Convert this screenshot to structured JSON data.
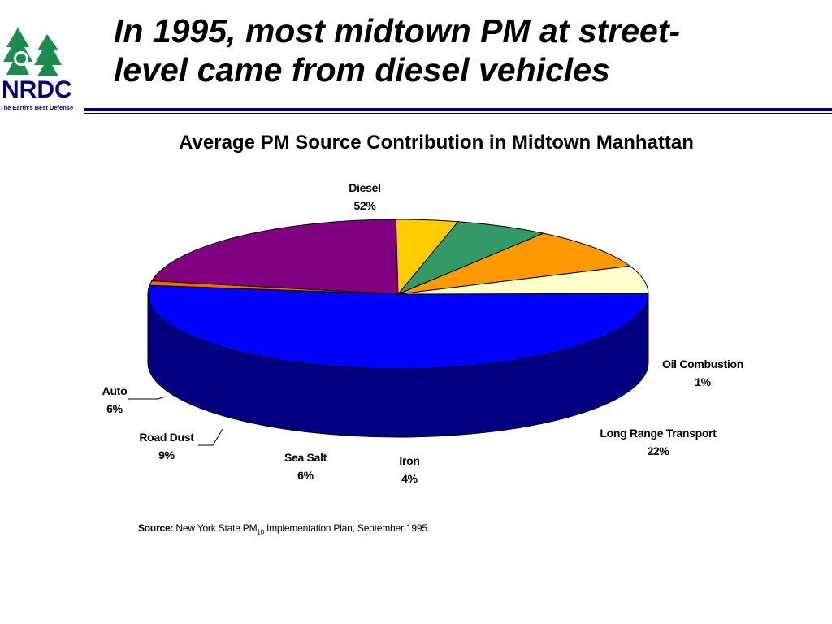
{
  "logo": {
    "text": "NRDC",
    "tagline": "The Earth's Best Defense"
  },
  "slide_title": {
    "line1": "In 1995, most midtown PM at street-",
    "line2": "level came from diesel vehicles"
  },
  "source": {
    "label": "Source:",
    "text_before": "New York State PM",
    "subscript": "10",
    "text_after": " Implementation Plan, September 1995."
  },
  "colors": {
    "brand_navy": "#000080",
    "logo_green": "#1a8c4e"
  },
  "chart_data": {
    "type": "pie",
    "style": "3d-exploded-tilted",
    "title": "Average PM Source Contribution in Midtown Manhattan",
    "slices": [
      {
        "label": "Diesel",
        "value": 52,
        "value_label": "52%",
        "color": "#0000ff",
        "side_color": "#000080"
      },
      {
        "label": "Oil Combustion",
        "value": 1,
        "value_label": "1%",
        "color": "#ff6600",
        "side_color": "#804000"
      },
      {
        "label": "Long Range Transport",
        "value": 22,
        "value_label": "22%",
        "color": "#800080",
        "side_color": "#400040"
      },
      {
        "label": "Iron",
        "value": 4,
        "value_label": "4%",
        "color": "#ffcc00",
        "side_color": "#806600"
      },
      {
        "label": "Sea Salt",
        "value": 6,
        "value_label": "6%",
        "color": "#339966",
        "side_color": "#1a4d33"
      },
      {
        "label": "Road Dust",
        "value": 9,
        "value_label": "9%",
        "color": "#ff9900",
        "side_color": "#804c00"
      },
      {
        "label": "Auto",
        "value": 6,
        "value_label": "6%",
        "color": "#ffffcc",
        "side_color": "#808066"
      }
    ]
  }
}
